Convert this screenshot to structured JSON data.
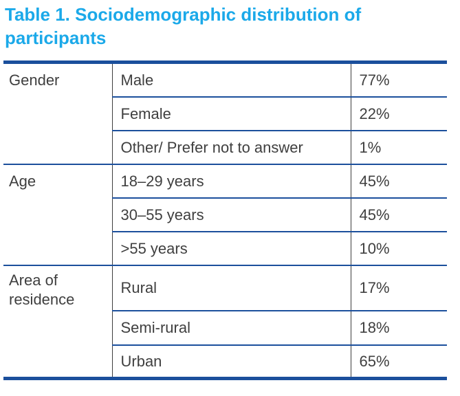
{
  "title": "Table 1. Sociodemographic distribution of participants",
  "colors": {
    "title_text": "#1BA9E9",
    "thick_border": "#1B4F9C",
    "row_separator": "#1B4F9C",
    "vertical_divider": "#3C3C3C",
    "body_text": "#3F3F3F",
    "background": "#FFFFFF"
  },
  "table": {
    "sections": [
      {
        "category": "Gender",
        "rows": [
          {
            "label": "Male",
            "value": "77%"
          },
          {
            "label": "Female",
            "value": "22%"
          },
          {
            "label": "Other/ Prefer not to answer",
            "value": "1%"
          }
        ]
      },
      {
        "category": "Age",
        "rows": [
          {
            "label": "18–29 years",
            "value": "45%"
          },
          {
            "label": "30–55 years",
            "value": "45%"
          },
          {
            "label": ">55 years",
            "value": "10%"
          }
        ]
      },
      {
        "category": "Area of residence",
        "rows": [
          {
            "label": "Rural",
            "value": "17%"
          },
          {
            "label": "Semi-rural",
            "value": "18%"
          },
          {
            "label": "Urban",
            "value": "65%"
          }
        ]
      }
    ]
  }
}
